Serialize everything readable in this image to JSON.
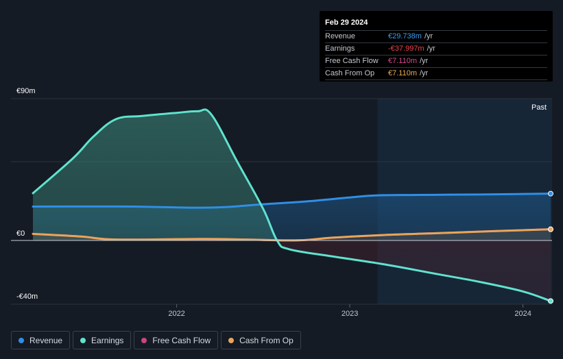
{
  "tooltip": {
    "date": "Feb 29 2024",
    "rows": [
      {
        "label": "Revenue",
        "value": "€29.738m",
        "unit": "/yr",
        "color": "#3b9cf0"
      },
      {
        "label": "Earnings",
        "value": "-€37.997m",
        "unit": "/yr",
        "color": "#f0444f"
      },
      {
        "label": "Free Cash Flow",
        "value": "€7.110m",
        "unit": "/yr",
        "color": "#d84b8f"
      },
      {
        "label": "Cash From Op",
        "value": "€7.110m",
        "unit": "/yr",
        "color": "#f0ad5a"
      }
    ]
  },
  "legend": [
    {
      "label": "Revenue",
      "color": "#2f8fe6"
    },
    {
      "label": "Earnings",
      "color": "#5fe3cf"
    },
    {
      "label": "Free Cash Flow",
      "color": "#c8467f"
    },
    {
      "label": "Cash From Op",
      "color": "#e9a55a"
    }
  ],
  "chart_data": {
    "type": "line",
    "title": "",
    "currency_unit": "€m",
    "ylim": [
      -40,
      90
    ],
    "y_tick_labels": [
      "€90m",
      "€0",
      "-€40m"
    ],
    "x_tick_labels": [
      "2022",
      "2023",
      "2024"
    ],
    "past_label": "Past",
    "series": [
      {
        "name": "Revenue",
        "color": "#2f8fe6",
        "points": [
          [
            2021.17,
            21.5
          ],
          [
            2021.5,
            21.6
          ],
          [
            2021.75,
            21.5
          ],
          [
            2022.0,
            21.0
          ],
          [
            2022.15,
            20.8
          ],
          [
            2022.3,
            21.3
          ],
          [
            2022.5,
            23.0
          ],
          [
            2022.75,
            24.8
          ],
          [
            2023.0,
            27.3
          ],
          [
            2023.15,
            28.6
          ],
          [
            2023.4,
            28.9
          ],
          [
            2023.75,
            29.2
          ],
          [
            2024.0,
            29.5
          ],
          [
            2024.16,
            29.738
          ]
        ]
      },
      {
        "name": "Earnings",
        "color": "#5fe3cf",
        "points": [
          [
            2021.17,
            30
          ],
          [
            2021.4,
            52
          ],
          [
            2021.52,
            66
          ],
          [
            2021.65,
            77
          ],
          [
            2021.8,
            79
          ],
          [
            2022.0,
            81
          ],
          [
            2022.12,
            82
          ],
          [
            2022.2,
            80
          ],
          [
            2022.35,
            50
          ],
          [
            2022.5,
            20
          ],
          [
            2022.58,
            0
          ],
          [
            2022.65,
            -5.5
          ],
          [
            2022.9,
            -10
          ],
          [
            2023.2,
            -15
          ],
          [
            2023.5,
            -21
          ],
          [
            2023.75,
            -26
          ],
          [
            2024.0,
            -32
          ],
          [
            2024.16,
            -37.997
          ]
        ]
      },
      {
        "name": "Free Cash Flow",
        "color": "#c8467f",
        "points": [
          [
            2021.17,
            4.2
          ],
          [
            2021.45,
            2.5
          ],
          [
            2021.65,
            0.6
          ],
          [
            2022.15,
            1.0
          ],
          [
            2022.4,
            0.6
          ],
          [
            2022.7,
            0.1
          ],
          [
            2022.9,
            1.8
          ],
          [
            2023.2,
            3.5
          ],
          [
            2023.5,
            4.6
          ],
          [
            2023.8,
            5.8
          ],
          [
            2024.16,
            7.11
          ]
        ]
      },
      {
        "name": "Cash From Op",
        "color": "#e9a55a",
        "points": [
          [
            2021.17,
            4.2
          ],
          [
            2021.45,
            2.5
          ],
          [
            2021.65,
            0.6
          ],
          [
            2022.15,
            1.0
          ],
          [
            2022.4,
            0.6
          ],
          [
            2022.7,
            0.1
          ],
          [
            2022.9,
            1.8
          ],
          [
            2023.2,
            3.5
          ],
          [
            2023.5,
            4.6
          ],
          [
            2023.8,
            5.8
          ],
          [
            2024.16,
            7.11
          ]
        ]
      }
    ],
    "x_range": [
      2021.17,
      2024.16
    ],
    "past_start": 2023.16
  }
}
